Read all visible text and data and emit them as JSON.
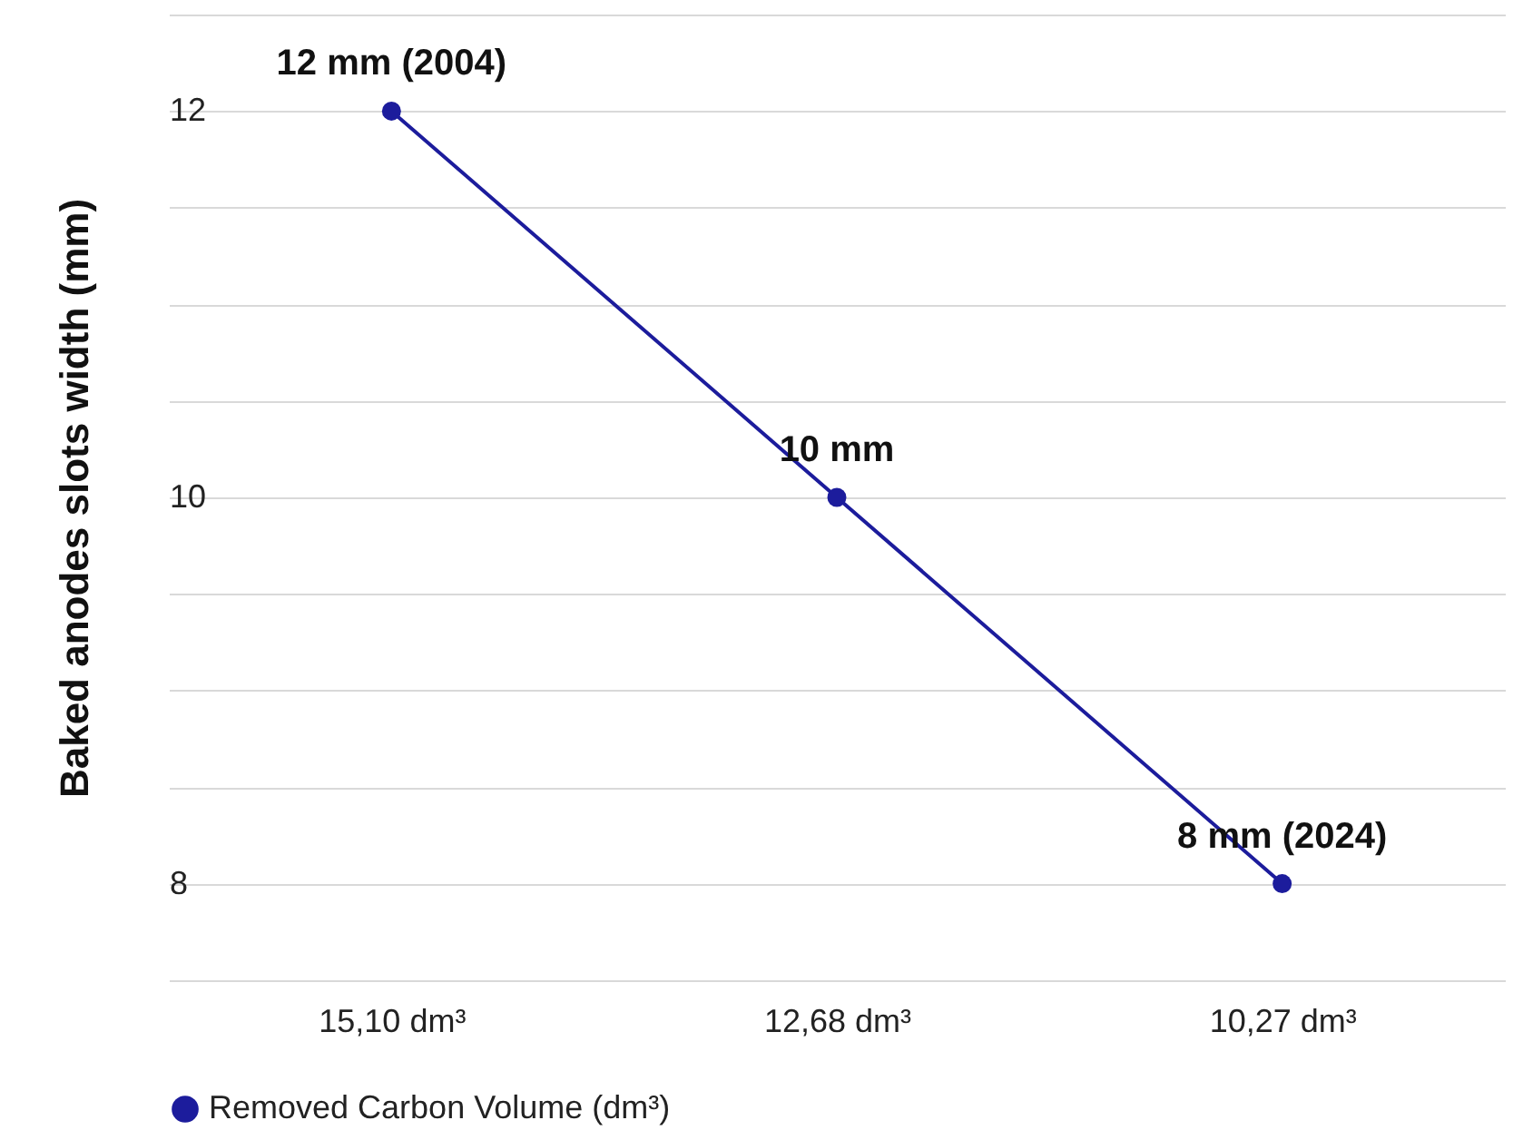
{
  "chart_data": {
    "type": "line",
    "ylabel": "Baked anodes slots width (mm)",
    "categories": [
      "15,10 dm³",
      "12,68 dm³",
      "10,27 dm³"
    ],
    "series": [
      {
        "name": "Removed Carbon Volume (dm³)",
        "color": "#1c1c9c",
        "values": [
          12,
          10,
          8
        ],
        "value_labels": [
          "12 mm (2004)",
          "10 mm",
          "8 mm (2024)"
        ]
      }
    ],
    "ylim": [
      7.5,
      12.5
    ],
    "yticks": [
      {
        "value": 7.5,
        "label": null
      },
      8,
      {
        "value": 8.5,
        "label": null
      },
      {
        "value": 9,
        "label": null
      },
      {
        "value": 9.5,
        "label": null
      },
      10,
      {
        "value": 10.5,
        "label": null
      },
      {
        "value": 11,
        "label": null
      },
      {
        "value": 11.5,
        "label": null
      },
      12,
      {
        "value": 12.5,
        "label": null
      }
    ],
    "grid": "y",
    "legend": "bottom",
    "marker": "circle",
    "line_style": "solid"
  }
}
